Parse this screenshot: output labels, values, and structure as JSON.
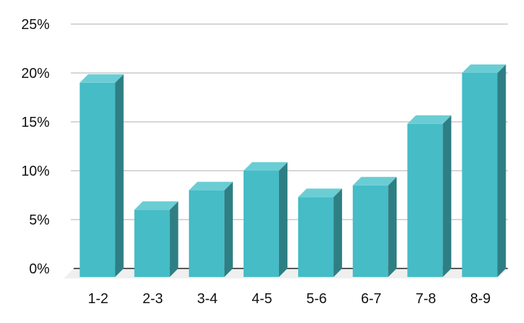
{
  "chart_data": {
    "type": "bar",
    "categories": [
      "1-2",
      "2-3",
      "3-4",
      "4-5",
      "5-6",
      "6-7",
      "7-8",
      "8-9"
    ],
    "values": [
      19,
      6,
      8,
      10,
      7.3,
      8.5,
      14.8,
      20
    ],
    "ylim": [
      0,
      25
    ],
    "y_ticks": [
      0,
      5,
      10,
      15,
      20,
      25
    ],
    "y_tick_labels": [
      "0%",
      "5%",
      "10%",
      "15%",
      "20%",
      "25%"
    ],
    "grid": true,
    "style": "3d-column",
    "colors": {
      "bar_front": "#45BCC6",
      "bar_top": "#6BCDD4",
      "bar_side": "#2E7F84",
      "gridline": "#C8C8C8",
      "floor": "#EFEFEF",
      "axis_line": "#222222"
    }
  }
}
